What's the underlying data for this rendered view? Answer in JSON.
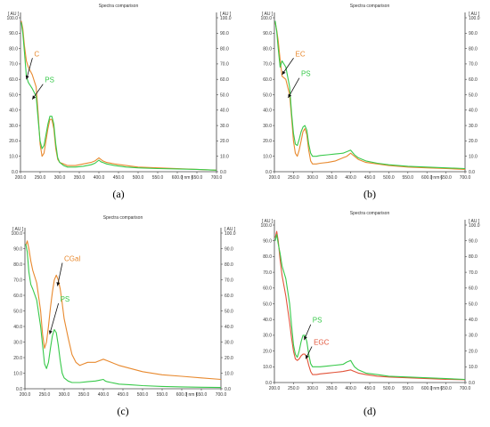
{
  "chart_data": [
    {
      "id": "a",
      "type": "line",
      "title": "Spectra comparison",
      "caption": "(a)",
      "xunit": "[ nm ]",
      "yunit": "[ AU ]",
      "xlim": [
        200,
        700
      ],
      "ylim": [
        0,
        100
      ],
      "xticks": [
        "200.0",
        "250.0",
        "300.0",
        "350.0",
        "400.0",
        "450.0",
        "500.0",
        "550.0",
        "600.0",
        "650.0",
        "700.0"
      ],
      "yticks": [
        "0.0",
        "10.0",
        "20.0",
        "30.0",
        "40.0",
        "50.0",
        "60.0",
        "70.0",
        "80.0",
        "90.0",
        "100.0"
      ],
      "yticks_right": [
        "0.0",
        "10.0",
        "20.0",
        "30.0",
        "40.0",
        "50.0",
        "60.0",
        "70.0",
        "80.0",
        "90.0",
        "100.0"
      ],
      "series": [
        {
          "name": "C",
          "color": "#e8892e",
          "x": [
            202,
            206,
            210,
            215,
            220,
            230,
            240,
            245,
            250,
            255,
            260,
            265,
            270,
            275,
            280,
            285,
            290,
            295,
            300,
            310,
            320,
            340,
            360,
            380,
            390,
            400,
            405,
            410,
            420,
            440,
            470,
            500,
            550,
            600,
            650,
            700
          ],
          "y": [
            98,
            93,
            82,
            72,
            68,
            63,
            55,
            38,
            18,
            10,
            12,
            20,
            28,
            34,
            34,
            28,
            15,
            8,
            6,
            5,
            4,
            4,
            5,
            6,
            7,
            9,
            8,
            7,
            6,
            5,
            4,
            3,
            2.5,
            2,
            1.5,
            1
          ]
        },
        {
          "name": "PS",
          "color": "#38c94a",
          "x": [
            202,
            206,
            210,
            215,
            220,
            230,
            240,
            245,
            250,
            255,
            260,
            265,
            270,
            275,
            280,
            285,
            290,
            295,
            300,
            310,
            320,
            340,
            360,
            380,
            390,
            400,
            405,
            410,
            420,
            440,
            470,
            500,
            550,
            600,
            650,
            700
          ],
          "y": [
            97,
            90,
            78,
            62,
            58,
            54,
            49,
            34,
            20,
            15,
            17,
            24,
            31,
            36,
            36,
            31,
            18,
            9,
            6,
            4,
            3,
            3,
            3.5,
            4.5,
            5.5,
            7.5,
            6.5,
            6,
            5,
            4,
            3,
            2.5,
            2,
            1.8,
            1.5,
            1
          ]
        }
      ],
      "annotations": [
        {
          "text": "C",
          "color": "#e8892e",
          "x": 235,
          "y": 75,
          "target_x": 215,
          "target_y": 60
        },
        {
          "text": "PS",
          "color": "#38c94a",
          "x": 262,
          "y": 58,
          "target_x": 230,
          "target_y": 47
        }
      ]
    },
    {
      "id": "b",
      "type": "line",
      "title": "Spectra comparison",
      "caption": "(b)",
      "xunit": "[ nm ]",
      "yunit": "[ AU ]",
      "xlim": [
        200,
        700
      ],
      "ylim": [
        0,
        100
      ],
      "xticks": [
        "200.0",
        "250.0",
        "300.0",
        "350.0",
        "400.0",
        "450.0",
        "500.0",
        "550.0",
        "600.0",
        "650.0",
        "700.0"
      ],
      "yticks": [
        "0.0",
        "10.0",
        "20.0",
        "30.0",
        "40.0",
        "50.0",
        "60.0",
        "70.0",
        "80.0",
        "90.0",
        "100.0"
      ],
      "yticks_right": [
        "0.0",
        "10.0",
        "20.0",
        "30.0",
        "40.0",
        "50.0",
        "60.0",
        "70.0",
        "80.0",
        "90.0",
        "100.0"
      ],
      "series": [
        {
          "name": "EC",
          "color": "#e8892e",
          "x": [
            202,
            206,
            210,
            215,
            220,
            230,
            240,
            245,
            250,
            255,
            260,
            265,
            270,
            275,
            280,
            285,
            290,
            295,
            300,
            310,
            320,
            340,
            360,
            380,
            390,
            400,
            405,
            410,
            420,
            440,
            470,
            500,
            550,
            600,
            650,
            700
          ],
          "y": [
            97,
            92,
            85,
            73,
            62,
            60,
            50,
            35,
            20,
            12,
            10,
            14,
            20,
            26,
            28,
            24,
            14,
            7,
            5,
            5,
            5.5,
            6,
            7,
            9,
            10,
            12,
            11,
            10,
            8,
            6,
            5,
            4,
            3,
            2.5,
            2,
            1.5
          ]
        },
        {
          "name": "PS",
          "color": "#38c94a",
          "x": [
            202,
            206,
            210,
            215,
            220,
            230,
            240,
            245,
            250,
            255,
            260,
            265,
            270,
            275,
            280,
            285,
            290,
            295,
            300,
            310,
            320,
            340,
            360,
            380,
            390,
            400,
            405,
            410,
            420,
            440,
            470,
            500,
            550,
            600,
            650,
            700
          ],
          "y": [
            98,
            91,
            80,
            68,
            72,
            68,
            55,
            38,
            25,
            18,
            17,
            21,
            26,
            29,
            30,
            27,
            18,
            12,
            10,
            10,
            10.5,
            11,
            11.5,
            12,
            13,
            14,
            12.5,
            11,
            9,
            7,
            5.5,
            4.5,
            3.5,
            3,
            2.5,
            2
          ]
        }
      ],
      "annotations": [
        {
          "text": "EC",
          "color": "#e8892e",
          "x": 255,
          "y": 75,
          "target_x": 220,
          "target_y": 63
        },
        {
          "text": "PS",
          "color": "#38c94a",
          "x": 270,
          "y": 62,
          "target_x": 236,
          "target_y": 48
        }
      ]
    },
    {
      "id": "c",
      "type": "line",
      "title": "Spectra comparison",
      "caption": "(c)",
      "xunit": "[ nm ]",
      "yunit": "[ AU ]",
      "xlim": [
        200,
        700
      ],
      "ylim": [
        0,
        100
      ],
      "xticks": [
        "200.0",
        "250.0",
        "300.0",
        "350.0",
        "400.0",
        "450.0",
        "500.0",
        "550.0",
        "600.0",
        "650.0",
        "700.0"
      ],
      "yticks": [
        "0.0",
        "10.0",
        "20.0",
        "30.0",
        "40.0",
        "50.0",
        "60.0",
        "70.0",
        "80.0",
        "90.0",
        "100.0"
      ],
      "yticks_right": [
        "0.0",
        "10.0",
        "20.0",
        "30.0",
        "40.0",
        "50.0",
        "60.0",
        "70.0",
        "80.0",
        "90.0",
        "100.0"
      ],
      "series": [
        {
          "name": "CGal",
          "color": "#e8892e",
          "x": [
            202,
            206,
            210,
            215,
            220,
            230,
            240,
            245,
            250,
            255,
            260,
            265,
            270,
            275,
            280,
            285,
            290,
            295,
            300,
            310,
            320,
            330,
            340,
            350,
            360,
            380,
            390,
            400,
            410,
            420,
            440,
            470,
            500,
            550,
            600,
            650,
            700
          ],
          "y": [
            92,
            95,
            90,
            82,
            76,
            68,
            50,
            35,
            26,
            30,
            40,
            52,
            62,
            70,
            73,
            70,
            64,
            55,
            45,
            33,
            22,
            17,
            15,
            16,
            17,
            17,
            18,
            19,
            18,
            17,
            15,
            13,
            11,
            9,
            8,
            7,
            6
          ]
        },
        {
          "name": "PS",
          "color": "#38c94a",
          "x": [
            202,
            206,
            210,
            215,
            220,
            230,
            240,
            245,
            250,
            255,
            260,
            265,
            270,
            275,
            280,
            285,
            290,
            295,
            300,
            310,
            320,
            340,
            360,
            380,
            390,
            400,
            405,
            410,
            420,
            440,
            470,
            500,
            550,
            600,
            650,
            700
          ],
          "y": [
            93,
            88,
            75,
            67,
            64,
            57,
            40,
            28,
            16,
            13,
            17,
            26,
            34,
            38,
            36,
            28,
            18,
            10,
            7,
            5,
            4,
            4,
            4.5,
            5,
            5.5,
            6,
            5,
            4.5,
            4,
            3,
            2.5,
            2,
            1.5,
            1.2,
            1,
            0.8
          ]
        }
      ],
      "annotations": [
        {
          "text": "CGal",
          "color": "#e8892e",
          "x": 300,
          "y": 82,
          "target_x": 283,
          "target_y": 66
        },
        {
          "text": "PS",
          "color": "#38c94a",
          "x": 290,
          "y": 56,
          "target_x": 263,
          "target_y": 35
        }
      ]
    },
    {
      "id": "d",
      "type": "line",
      "title": "Spectra comparison",
      "caption": "(d)",
      "xunit": "[ nm ]",
      "yunit": "[ AU ]",
      "xlim": [
        200,
        700
      ],
      "ylim": [
        0,
        100
      ],
      "xticks": [
        "200.0",
        "250.0",
        "300.0",
        "350.0",
        "400.0",
        "450.0",
        "500.0",
        "550.0",
        "600.0",
        "650.0",
        "700.0"
      ],
      "yticks": [
        "0.0",
        "10.0",
        "20.0",
        "30.0",
        "40.0",
        "50.0",
        "60.0",
        "70.0",
        "80.0",
        "90.0",
        "100.0"
      ],
      "yticks_right": [
        "0.0",
        "10.0",
        "20.0",
        "30.0",
        "40.0",
        "50.0",
        "60.0",
        "70.0",
        "80.0",
        "90.0",
        "100.0"
      ],
      "series": [
        {
          "name": "EGC",
          "color": "#e2543a",
          "x": [
            202,
            206,
            210,
            215,
            220,
            230,
            240,
            245,
            250,
            255,
            260,
            265,
            270,
            275,
            280,
            285,
            290,
            295,
            300,
            310,
            320,
            340,
            360,
            380,
            390,
            400,
            405,
            410,
            420,
            440,
            470,
            500,
            550,
            600,
            650,
            700
          ],
          "y": [
            92,
            96,
            90,
            78,
            68,
            55,
            38,
            28,
            20,
            15,
            14,
            15,
            17,
            18,
            18,
            16,
            11,
            7,
            5,
            5,
            5.5,
            6,
            6.5,
            7,
            7.5,
            8,
            7.5,
            7,
            6,
            5,
            4,
            3.5,
            3,
            2.5,
            2,
            1.8
          ]
        },
        {
          "name": "PS",
          "color": "#38c94a",
          "x": [
            202,
            206,
            210,
            215,
            220,
            230,
            240,
            245,
            250,
            255,
            260,
            265,
            270,
            275,
            280,
            285,
            290,
            295,
            300,
            310,
            320,
            340,
            360,
            380,
            390,
            400,
            405,
            410,
            420,
            440,
            470,
            500,
            550,
            600,
            650,
            700
          ],
          "y": [
            90,
            94,
            88,
            82,
            74,
            66,
            50,
            36,
            24,
            18,
            16,
            20,
            26,
            30,
            30,
            26,
            18,
            12,
            10,
            10,
            10,
            10.5,
            11,
            11.5,
            13,
            14,
            12,
            10,
            8,
            6,
            5,
            4,
            3.5,
            3,
            2.5,
            2
          ]
        }
      ],
      "annotations": [
        {
          "text": "PS",
          "color": "#38c94a",
          "x": 300,
          "y": 38,
          "target_x": 278,
          "target_y": 27
        },
        {
          "text": "EGC",
          "color": "#e2543a",
          "x": 303,
          "y": 24,
          "target_x": 282,
          "target_y": 15
        }
      ]
    }
  ]
}
